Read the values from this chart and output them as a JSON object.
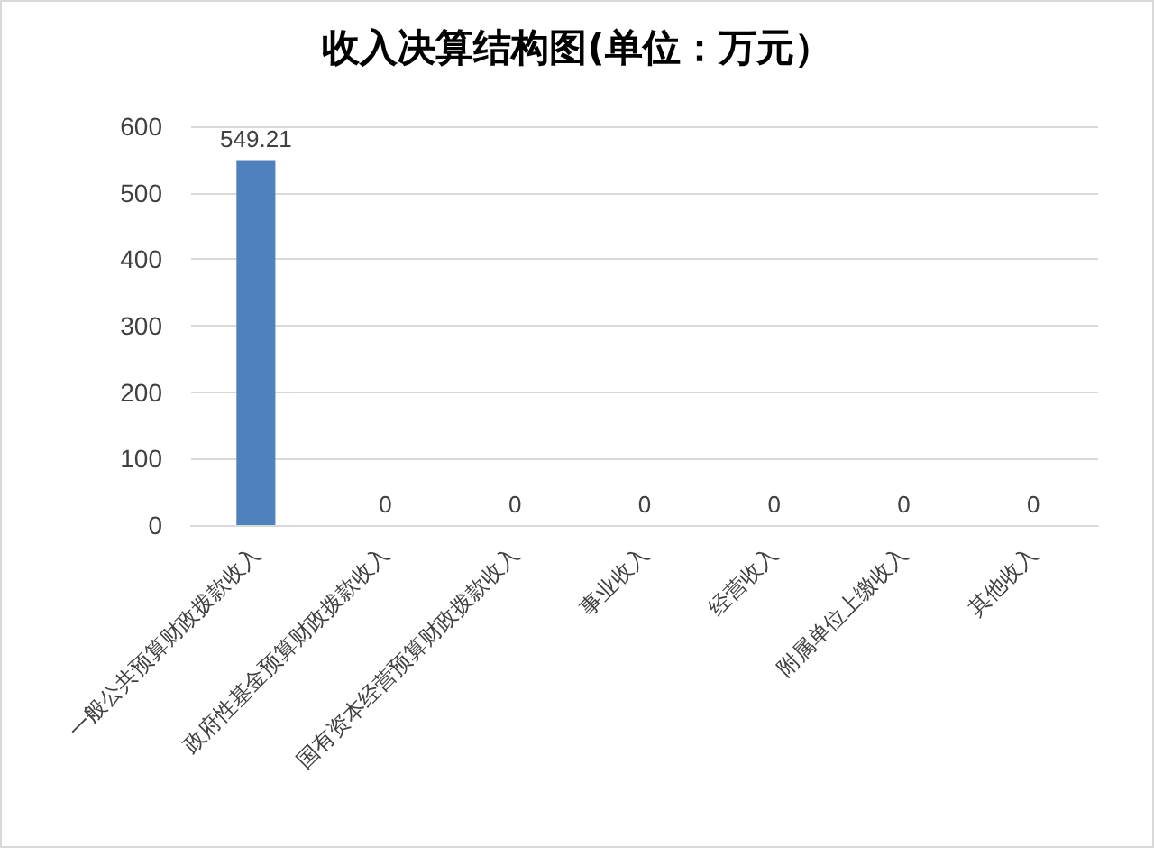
{
  "chart_data": {
    "type": "bar",
    "title": "收入决算结构图(单位：万元）",
    "categories": [
      "一般公共预算财政拨款收入",
      "政府性基金预算财政拨款收入",
      "国有资本经营预算财政拨款收入",
      "事业收入",
      "经营收入",
      "附属单位上缴收入",
      "其他收入"
    ],
    "values": [
      549.21,
      0,
      0,
      0,
      0,
      0,
      0
    ],
    "color": "#4f81bd",
    "ylim": [
      0,
      600
    ],
    "yticks": [
      0,
      100,
      200,
      300,
      400,
      500,
      600
    ],
    "grid": "y",
    "data_labels": true
  }
}
